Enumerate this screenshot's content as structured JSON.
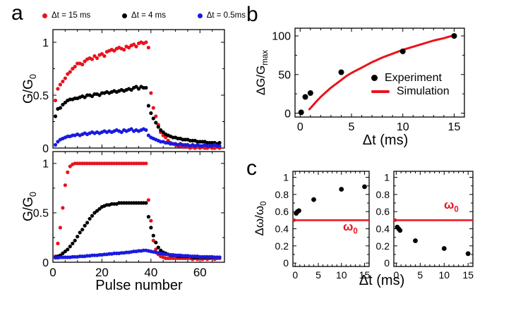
{
  "figure": {
    "panel_a": {
      "label": "a",
      "legend": [
        {
          "label": "Δt = 15 ms",
          "color": "#e8131d"
        },
        {
          "label": "Δt = 4 ms",
          "color": "#000000"
        },
        {
          "label": "Δt = 0.5ms",
          "color": "#1a1ae0"
        }
      ],
      "ylabel_base": "G/G",
      "ylabel_sub": "0",
      "xlabel": "Pulse number"
    },
    "panel_b": {
      "label": "b",
      "ylabel_base": "ΔG/G",
      "ylabel_sub": "max",
      "xlabel": "Δt (ms)",
      "legend": {
        "experiment": "Experiment",
        "experiment_color": "#000000",
        "simulation": "Simulation",
        "simulation_color": "#e8131d"
      }
    },
    "panel_c": {
      "label": "c",
      "ylabel_base": "Δω/ω",
      "ylabel_sub": "0",
      "xlabel": "Δt (ms)",
      "omega_base": "ω",
      "omega_sub": "0",
      "omega_color": "#e8131d"
    }
  },
  "chart_data": [
    {
      "id": "a_top",
      "type": "scatter",
      "xlabel": "",
      "ylabel": "G/G0",
      "xlim": [
        0,
        70
      ],
      "ylim": [
        0,
        1.12
      ],
      "x0": 1,
      "xticks": {
        "major": [
          0,
          20,
          40,
          60
        ],
        "minor_step": 5,
        "show_labels": false
      },
      "yticks": {
        "major": [
          0,
          0.5,
          1
        ],
        "minor_step": 0.25,
        "show_labels": true
      },
      "series": [
        {
          "name": "dt-15ms",
          "color": "#e8131d",
          "marker_r": 2.6,
          "y": [
            0.45,
            0.56,
            0.6,
            0.63,
            0.66,
            0.7,
            0.72,
            0.75,
            0.77,
            0.8,
            0.8,
            0.79,
            0.82,
            0.84,
            0.85,
            0.84,
            0.87,
            0.85,
            0.88,
            0.89,
            0.87,
            0.91,
            0.92,
            0.93,
            0.92,
            0.94,
            0.95,
            0.94,
            0.93,
            0.96,
            0.95,
            0.97,
            0.98,
            0.96,
            0.99,
            1.0,
            0.99,
            1.0,
            0.95,
            0.52,
            0.38,
            0.3,
            0.22,
            0.15,
            0.12,
            0.1,
            0.07,
            0.05,
            0.04,
            0.03,
            0.02,
            0.02,
            0.01,
            0.02,
            0.01,
            0.0,
            0.01,
            0.0,
            0.01,
            0.0,
            0.01,
            0.0,
            0.0,
            0.01,
            0.0,
            0.0,
            0.01,
            0.0
          ]
        },
        {
          "name": "dt-4ms",
          "color": "#000000",
          "marker_r": 2.6,
          "y": [
            0.3,
            0.37,
            0.38,
            0.41,
            0.43,
            0.45,
            0.46,
            0.46,
            0.47,
            0.47,
            0.48,
            0.49,
            0.48,
            0.5,
            0.5,
            0.49,
            0.51,
            0.51,
            0.5,
            0.52,
            0.52,
            0.53,
            0.52,
            0.53,
            0.54,
            0.53,
            0.54,
            0.55,
            0.54,
            0.55,
            0.56,
            0.55,
            0.57,
            0.58,
            0.56,
            0.58,
            0.57,
            0.57,
            0.4,
            0.33,
            0.28,
            0.24,
            0.2,
            0.17,
            0.15,
            0.13,
            0.12,
            0.11,
            0.1,
            0.1,
            0.09,
            0.09,
            0.08,
            0.08,
            0.08,
            0.07,
            0.07,
            0.07,
            0.06,
            0.06,
            0.06,
            0.06,
            0.05,
            0.05,
            0.05,
            0.05,
            0.04,
            0.05
          ]
        },
        {
          "name": "dt-05ms",
          "color": "#1a1ae0",
          "marker_r": 2.6,
          "y": [
            0.03,
            0.06,
            0.08,
            0.09,
            0.1,
            0.11,
            0.11,
            0.12,
            0.12,
            0.13,
            0.12,
            0.13,
            0.14,
            0.13,
            0.14,
            0.15,
            0.14,
            0.15,
            0.14,
            0.15,
            0.16,
            0.15,
            0.16,
            0.15,
            0.16,
            0.17,
            0.16,
            0.15,
            0.17,
            0.16,
            0.17,
            0.18,
            0.16,
            0.17,
            0.16,
            0.17,
            0.18,
            0.17,
            0.12,
            0.1,
            0.09,
            0.08,
            0.07,
            0.06,
            0.06,
            0.05,
            0.05,
            0.04,
            0.04,
            0.04,
            0.03,
            0.04,
            0.03,
            0.03,
            0.03,
            0.02,
            0.03,
            0.02,
            0.03,
            0.02,
            0.02,
            0.03,
            0.02,
            0.02,
            0.02,
            0.03,
            0.02,
            0.02
          ]
        }
      ]
    },
    {
      "id": "a_bottom",
      "type": "scatter",
      "xlabel": "Pulse number",
      "ylabel": "G/G0",
      "xlim": [
        0,
        70
      ],
      "ylim": [
        0,
        1.12
      ],
      "x0": 1,
      "xticks": {
        "major": [
          0,
          20,
          40,
          60
        ],
        "minor_step": 5,
        "show_labels": true
      },
      "yticks": {
        "major": [
          0,
          0.5,
          1
        ],
        "minor_step": 0.25,
        "show_labels": true
      },
      "series": [
        {
          "name": "dt-15ms",
          "color": "#e8131d",
          "marker_r": 2.6,
          "y": [
            0.06,
            0.19,
            0.35,
            0.55,
            0.78,
            0.91,
            0.97,
            0.99,
            1.0,
            1.0,
            1.0,
            1.0,
            1.0,
            1.0,
            1.0,
            1.0,
            1.0,
            1.0,
            1.0,
            1.0,
            1.0,
            1.0,
            1.0,
            1.0,
            1.0,
            1.0,
            1.0,
            1.0,
            1.0,
            1.0,
            1.0,
            1.0,
            1.0,
            1.0,
            1.0,
            1.0,
            1.0,
            1.0,
            0.63,
            0.42,
            0.22,
            0.13,
            0.08,
            0.06,
            0.05,
            0.04,
            0.04,
            0.04,
            0.04,
            0.04,
            0.04,
            0.04,
            0.04,
            0.04,
            0.04,
            0.04,
            0.03,
            0.04,
            0.03,
            0.04,
            0.03,
            0.04,
            0.03,
            0.04,
            0.04,
            0.03,
            0.04,
            0.04
          ]
        },
        {
          "name": "dt-4ms",
          "color": "#000000",
          "marker_r": 2.6,
          "y": [
            0.05,
            0.06,
            0.07,
            0.09,
            0.11,
            0.13,
            0.16,
            0.19,
            0.22,
            0.26,
            0.3,
            0.33,
            0.37,
            0.4,
            0.44,
            0.47,
            0.5,
            0.52,
            0.54,
            0.56,
            0.57,
            0.58,
            0.58,
            0.59,
            0.59,
            0.59,
            0.6,
            0.6,
            0.6,
            0.6,
            0.6,
            0.6,
            0.6,
            0.6,
            0.6,
            0.6,
            0.6,
            0.6,
            0.46,
            0.35,
            0.27,
            0.2,
            0.15,
            0.12,
            0.1,
            0.09,
            0.08,
            0.07,
            0.07,
            0.07,
            0.06,
            0.06,
            0.06,
            0.06,
            0.06,
            0.06,
            0.05,
            0.05,
            0.05,
            0.05,
            0.05,
            0.05,
            0.05,
            0.05,
            0.05,
            0.05,
            0.05,
            0.05
          ]
        },
        {
          "name": "dt-05ms",
          "color": "#1a1ae0",
          "marker_r": 2.6,
          "y": [
            0.045,
            0.045,
            0.05,
            0.05,
            0.05,
            0.05,
            0.05,
            0.055,
            0.055,
            0.055,
            0.06,
            0.06,
            0.06,
            0.065,
            0.065,
            0.07,
            0.07,
            0.07,
            0.075,
            0.075,
            0.08,
            0.08,
            0.085,
            0.085,
            0.09,
            0.09,
            0.09,
            0.095,
            0.095,
            0.1,
            0.1,
            0.105,
            0.11,
            0.11,
            0.115,
            0.115,
            0.12,
            0.12,
            0.115,
            0.11,
            0.105,
            0.1,
            0.095,
            0.09,
            0.085,
            0.08,
            0.08,
            0.075,
            0.075,
            0.07,
            0.07,
            0.07,
            0.065,
            0.065,
            0.065,
            0.06,
            0.06,
            0.06,
            0.06,
            0.055,
            0.055,
            0.055,
            0.055,
            0.055,
            0.055,
            0.05,
            0.05,
            0.05
          ]
        }
      ]
    },
    {
      "id": "b",
      "type": "scatter",
      "xlabel": "Δt (ms)",
      "ylabel": "ΔG/Gmax",
      "xlim": [
        -0.5,
        16
      ],
      "ylim": [
        -5,
        110
      ],
      "xticks": {
        "major": [
          0,
          5,
          10,
          15
        ],
        "minor_step": 1,
        "show_labels": true
      },
      "yticks": {
        "major": [
          0,
          50,
          100
        ],
        "minor_step": 25,
        "show_labels": true
      },
      "series": [
        {
          "name": "simulation",
          "kind": "line",
          "color": "#e8131d",
          "width": 3,
          "points": [
            [
              0.9,
              5
            ],
            [
              1.5,
              14
            ],
            [
              2,
              21
            ],
            [
              2.5,
              27
            ],
            [
              3,
              33
            ],
            [
              3.5,
              38
            ],
            [
              4,
              43
            ],
            [
              4.5,
              48
            ],
            [
              5,
              52
            ],
            [
              6,
              59
            ],
            [
              7,
              66
            ],
            [
              8,
              72
            ],
            [
              9,
              77
            ],
            [
              10,
              82
            ],
            [
              11,
              86
            ],
            [
              12,
              90
            ],
            [
              13,
              94
            ],
            [
              14,
              97
            ],
            [
              15,
              101
            ]
          ]
        },
        {
          "name": "experiment",
          "kind": "scatter",
          "color": "#000000",
          "marker_r": 4,
          "points": [
            [
              0.1,
              1
            ],
            [
              0.5,
              21
            ],
            [
              1,
              26
            ],
            [
              4,
              53
            ],
            [
              10,
              80
            ],
            [
              15,
              100
            ]
          ]
        }
      ]
    },
    {
      "id": "c_left",
      "type": "scatter",
      "xlabel": "Δt (ms)",
      "ylabel": "Δω/ω0",
      "xlim": [
        -0.5,
        16
      ],
      "ylim": [
        -0.04,
        1.07
      ],
      "xticks": {
        "major": [
          0,
          5,
          10,
          15
        ],
        "minor_step": 1,
        "show_labels": true
      },
      "yticks": {
        "major": [
          0,
          0.2,
          0.4,
          0.6,
          0.8,
          1
        ],
        "minor_step": 0.1,
        "show_labels": true
      },
      "hline": {
        "y": 0.5,
        "color": "#e8131d",
        "width": 2.5,
        "label": "ω0",
        "left_end_dot": true
      },
      "series": [
        {
          "name": "freq-shift",
          "kind": "scatter",
          "color": "#000000",
          "marker_r": 3.4,
          "points": [
            [
              0.2,
              0.58
            ],
            [
              0.5,
              0.6
            ],
            [
              0.8,
              0.61
            ],
            [
              4,
              0.74
            ],
            [
              10,
              0.86
            ],
            [
              15,
              0.89
            ]
          ]
        }
      ]
    },
    {
      "id": "c_right",
      "type": "scatter",
      "xlabel": "Δt (ms)",
      "ylabel": "",
      "xlim": [
        -0.5,
        16
      ],
      "ylim": [
        -0.04,
        1.07
      ],
      "xticks": {
        "major": [
          0,
          5,
          10,
          15
        ],
        "minor_step": 1,
        "show_labels": true
      },
      "yticks": {
        "major": [
          0,
          0.2,
          0.4,
          0.6,
          0.8,
          1
        ],
        "minor_step": 0.1,
        "show_labels": true
      },
      "hline": {
        "y": 0.5,
        "color": "#e8131d",
        "width": 2.5,
        "label": "ω0",
        "left_end_dot": true
      },
      "series": [
        {
          "name": "freq-shift",
          "kind": "scatter",
          "color": "#000000",
          "marker_r": 3.4,
          "points": [
            [
              0.2,
              0.42
            ],
            [
              0.5,
              0.4
            ],
            [
              0.8,
              0.38
            ],
            [
              4,
              0.26
            ],
            [
              10,
              0.17
            ],
            [
              15,
              0.11
            ]
          ]
        }
      ]
    }
  ]
}
